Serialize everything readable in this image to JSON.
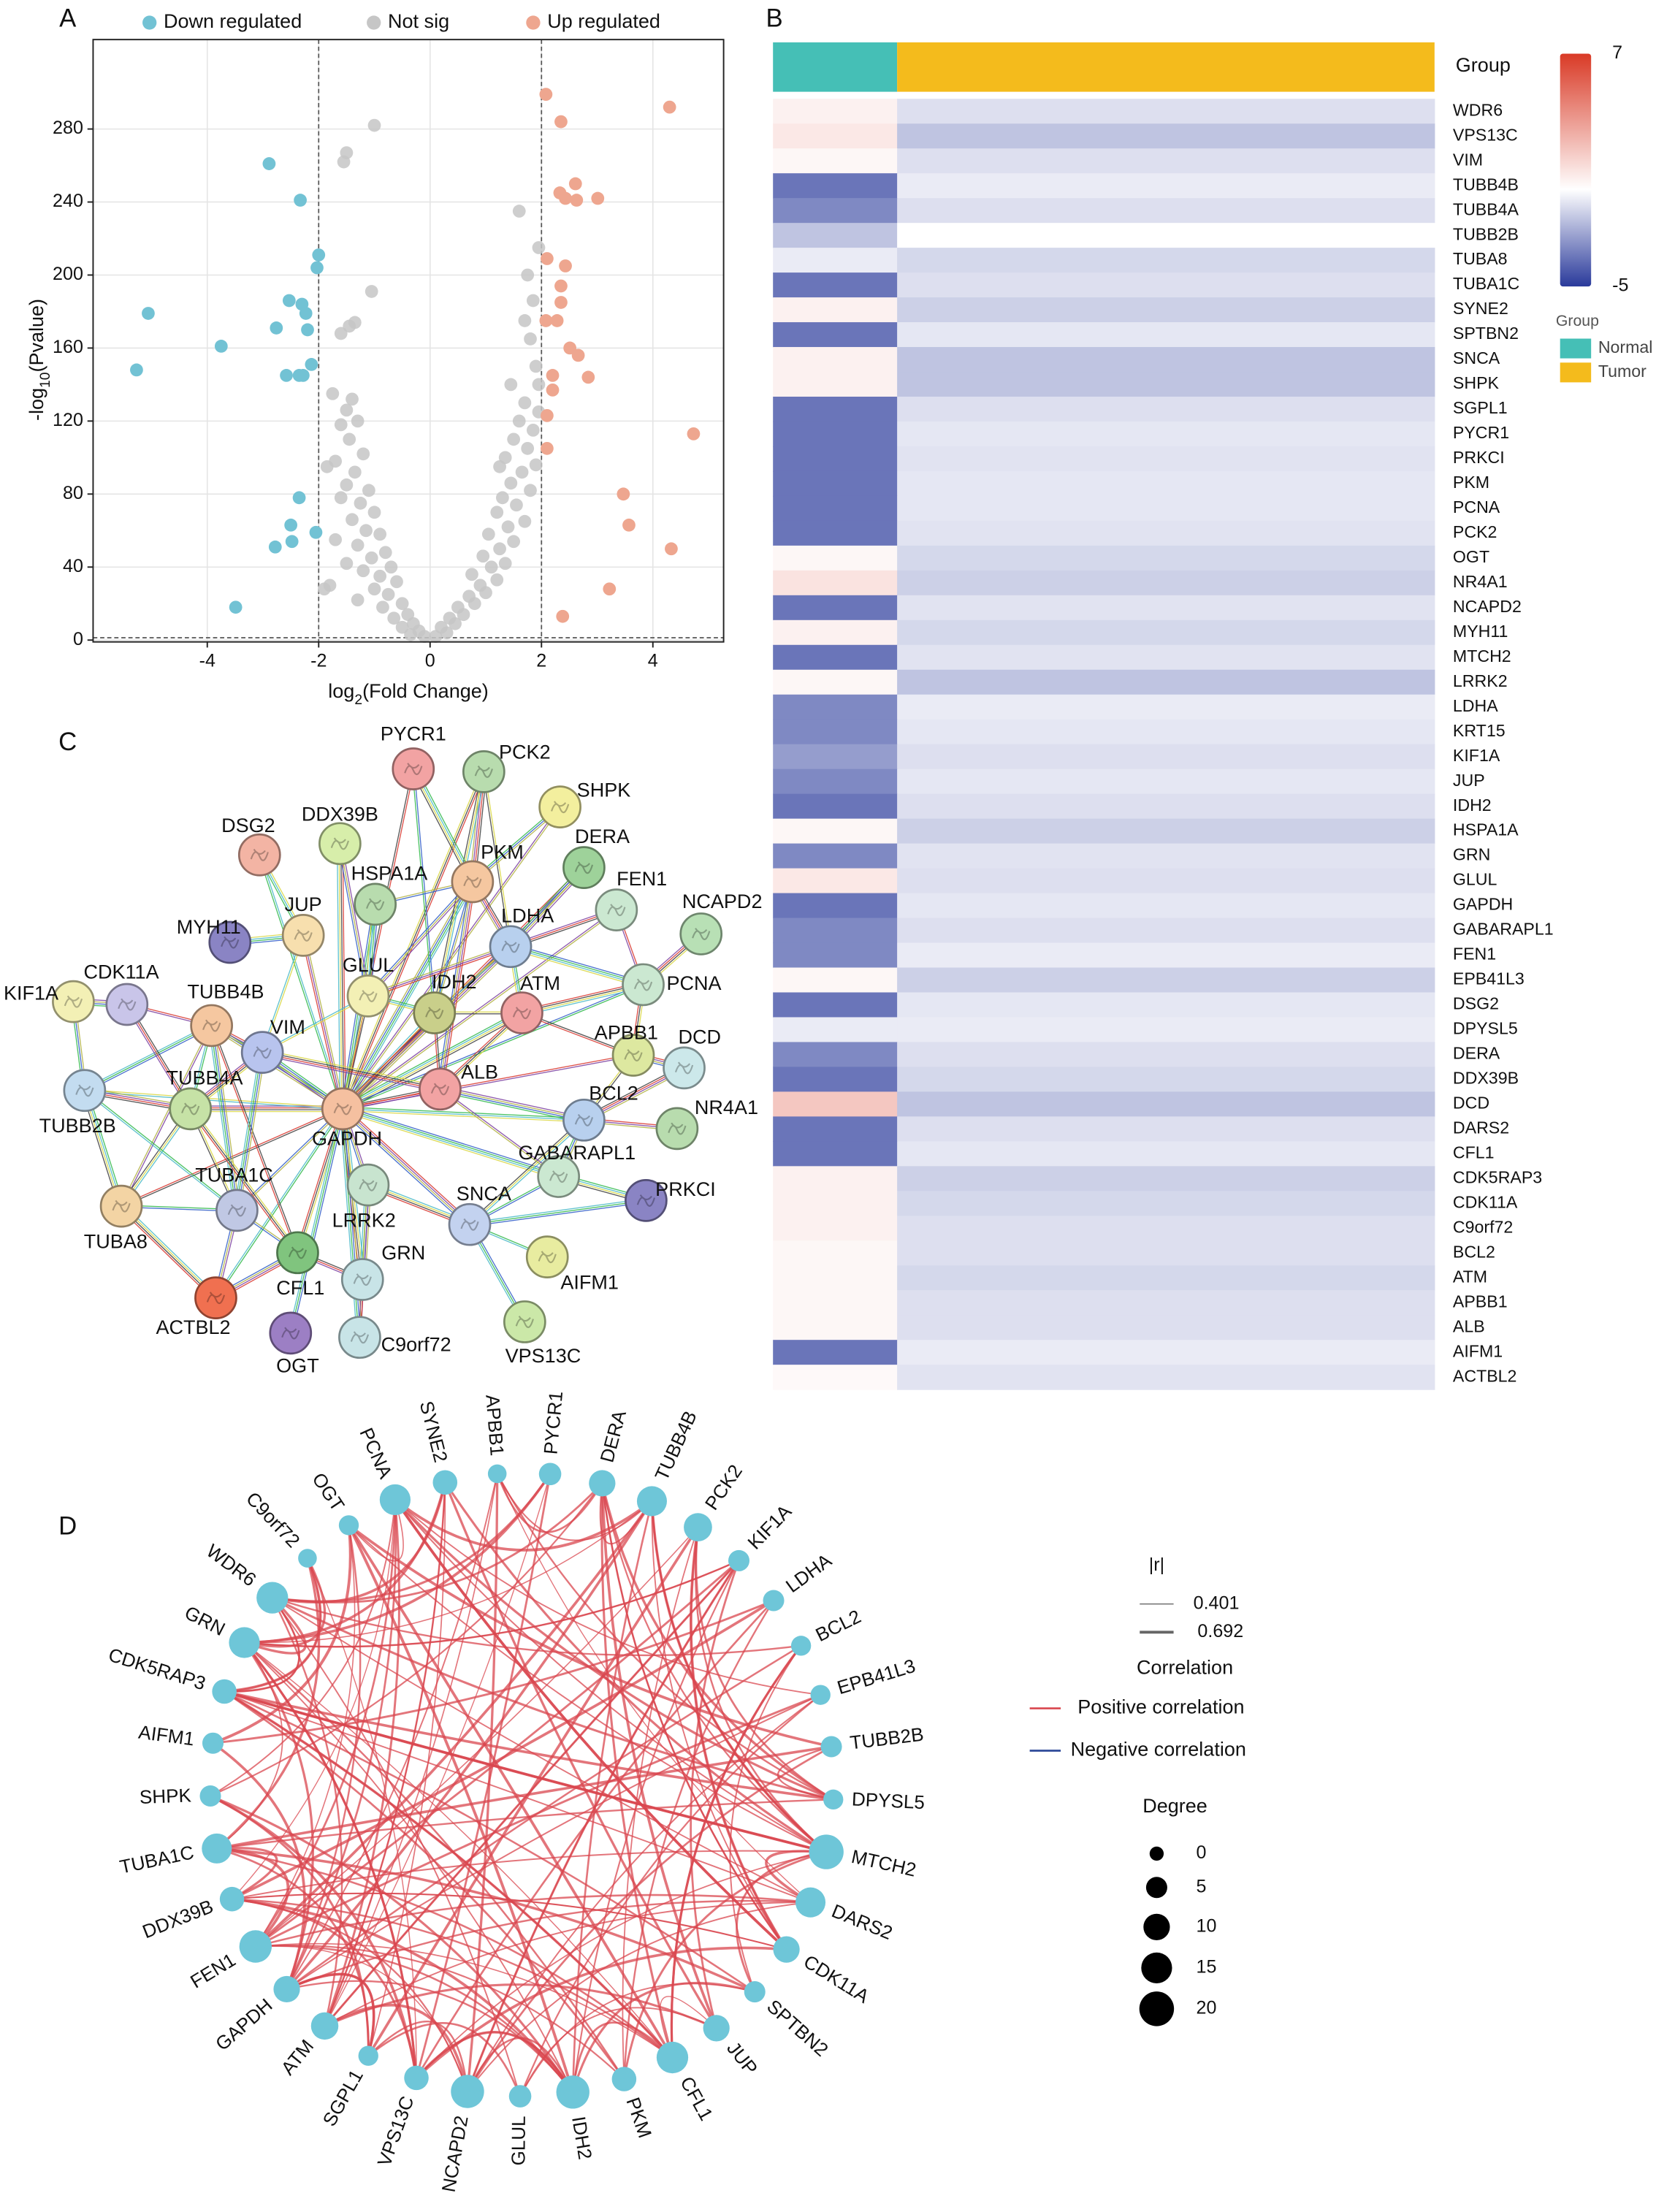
{
  "chart_data": [
    {
      "type": "scatter",
      "panel": "A",
      "xlabel": [
        "log",
        "2",
        "(Fold Change)"
      ],
      "ylabel": [
        "-log",
        "10",
        "(Pvalue)"
      ],
      "xlim": [
        -6.05,
        5.27
      ],
      "ylim": [
        -1,
        329
      ],
      "xticks": [
        -4,
        -2,
        0,
        2,
        4
      ],
      "yticks": [
        0,
        40,
        80,
        120,
        160,
        200,
        240,
        280
      ],
      "grid": true,
      "vlines": [
        -2,
        2
      ],
      "hline": 1.3,
      "series": [
        {
          "name": "Down regulated",
          "color": "#72c2d4",
          "x": [
            -5.27,
            -5.06,
            -3.75,
            -3.49,
            -2.89,
            -2.33,
            -2.0,
            -2.03,
            -2.53,
            -2.3,
            -2.23,
            -2.76,
            -2.2,
            -2.58,
            -2.35,
            -2.28,
            -2.13,
            -2.35,
            -2.5,
            -2.05,
            -2.78,
            -2.48
          ],
          "values": [
            148,
            179,
            161,
            18,
            261,
            241,
            211,
            204,
            186,
            184,
            179,
            171,
            170,
            145,
            145,
            145,
            151,
            78,
            63,
            59,
            51,
            54
          ]
        },
        {
          "name": "Not sig",
          "color": "#c6c6c6",
          "x": [
            -1.0,
            -1.5,
            -1.55,
            -1.05,
            -1.45,
            -1.35,
            -1.6,
            -1.4,
            -1.5,
            -1.3,
            -1.6,
            -1.45,
            -1.2,
            -1.7,
            -1.35,
            -1.5,
            -1.1,
            -1.6,
            -1.25,
            -1.0,
            -1.4,
            -1.15,
            -0.9,
            -1.7,
            -1.3,
            -0.8,
            -1.05,
            -1.5,
            -0.7,
            -1.2,
            -0.9,
            -1.8,
            -0.6,
            -1.0,
            -0.75,
            -1.3,
            -0.5,
            -0.85,
            -0.4,
            -0.65,
            -0.3,
            -0.5,
            -0.2,
            -0.35,
            -0.1,
            -1.9,
            -1.85,
            -1.75,
            0.1,
            0.3,
            0.2,
            0.45,
            0.35,
            0.6,
            0.5,
            0.8,
            0.7,
            1.0,
            0.9,
            1.2,
            0.75,
            1.1,
            1.35,
            0.95,
            1.25,
            1.5,
            1.05,
            1.4,
            1.7,
            1.2,
            1.55,
            1.3,
            1.8,
            1.45,
            1.65,
            1.9,
            1.35,
            1.75,
            1.5,
            1.85,
            1.6,
            1.95,
            1.7,
            1.45,
            1.9,
            1.8,
            1.7,
            1.85,
            1.75,
            1.95,
            1.6,
            1.95,
            1.25
          ],
          "values": [
            282,
            267,
            262,
            191,
            172,
            174,
            168,
            132,
            126,
            120,
            118,
            110,
            102,
            98,
            92,
            85,
            82,
            78,
            75,
            70,
            66,
            60,
            58,
            55,
            52,
            48,
            45,
            42,
            40,
            38,
            35,
            30,
            32,
            28,
            25,
            22,
            20,
            18,
            14,
            12,
            9,
            7,
            5,
            3,
            2,
            28,
            95,
            135,
            2,
            4,
            7,
            9,
            12,
            14,
            18,
            20,
            24,
            26,
            30,
            33,
            36,
            40,
            42,
            46,
            50,
            54,
            58,
            62,
            65,
            70,
            74,
            78,
            82,
            86,
            92,
            96,
            100,
            105,
            110,
            115,
            120,
            125,
            130,
            140,
            150,
            165,
            175,
            186,
            200,
            215,
            235,
            140,
            95
          ]
        },
        {
          "name": "Up regulated",
          "color": "#eea68f",
          "x": [
            2.08,
            2.35,
            4.3,
            2.61,
            2.33,
            2.63,
            3.01,
            2.43,
            2.1,
            2.43,
            2.35,
            2.35,
            2.28,
            2.08,
            2.51,
            2.66,
            2.2,
            2.84,
            2.2,
            2.1,
            2.1,
            4.73,
            3.47,
            3.57,
            4.33,
            3.22,
            2.38
          ],
          "values": [
            299,
            284,
            292,
            250,
            245,
            241,
            242,
            242,
            209,
            205,
            194,
            185,
            175,
            175,
            160,
            156,
            145,
            144,
            137,
            123,
            105,
            113,
            80,
            63,
            50,
            28,
            13
          ]
        }
      ]
    },
    {
      "type": "heatmap",
      "panel": "B",
      "group_label": "Group",
      "groups": [
        {
          "name": "Normal",
          "color": "#45bfb6"
        },
        {
          "name": "Tumor",
          "color": "#f4bb1c"
        }
      ],
      "color_range": [
        -5,
        7
      ],
      "colors": [
        "#2a3a9b",
        "#ffffff",
        "#d93a26"
      ],
      "color_ticks": [
        7,
        -5
      ],
      "rows": [
        "WDR6",
        "VPS13C",
        "VIM",
        "TUBB4B",
        "TUBB4A",
        "TUBB2B",
        "TUBA8",
        "TUBA1C",
        "SYNE2",
        "SPTBN2",
        "SNCA",
        "SHPK",
        "SGPL1",
        "PYCR1",
        "PRKCI",
        "PKM",
        "PCNA",
        "PCK2",
        "OGT",
        "NR4A1",
        "NCAPD2",
        "MYH11",
        "MTCH2",
        "LRRK2",
        "LDHA",
        "KRT15",
        "KIF1A",
        "JUP",
        "IDH2",
        "HSPA1A",
        "GRN",
        "GLUL",
        "GAPDH",
        "GABARAPL1",
        "FEN1",
        "EPB41L3",
        "DSG2",
        "DPYSL5",
        "DERA",
        "DDX39B",
        "DCD",
        "DARS2",
        "CFL1",
        "CDK5RAP3",
        "CDK11A",
        "C9orf72",
        "BCL2",
        "ATM",
        "APBB1",
        "ALB",
        "AIFM1",
        "ACTBL2"
      ],
      "values": [
        [
          0.5,
          -0.8
        ],
        [
          0.8,
          -1.5
        ],
        [
          0.3,
          -0.8
        ],
        [
          -3.5,
          -0.5
        ],
        [
          -3,
          -0.8
        ],
        [
          -1.5,
          0
        ],
        [
          -0.5,
          -1
        ],
        [
          -3.5,
          -0.8
        ],
        [
          0.5,
          -1.2
        ],
        [
          -3.5,
          -0.6
        ],
        [
          0.5,
          -1.5
        ],
        [
          0.5,
          -1.5
        ],
        [
          -3.5,
          -0.8
        ],
        [
          -3.5,
          -0.6
        ],
        [
          -3.5,
          -0.7
        ],
        [
          -3.5,
          -0.6
        ],
        [
          -3.5,
          -0.6
        ],
        [
          -3.5,
          -0.7
        ],
        [
          0.3,
          -1.0
        ],
        [
          1.0,
          -1.2
        ],
        [
          -3.5,
          -0.7
        ],
        [
          0.5,
          -1.0
        ],
        [
          -3.5,
          -0.7
        ],
        [
          0.3,
          -1.5
        ],
        [
          -3,
          -0.5
        ],
        [
          -3,
          -0.6
        ],
        [
          -2.5,
          -0.8
        ],
        [
          -3,
          -0.6
        ],
        [
          -3.5,
          -0.8
        ],
        [
          0.3,
          -1.2
        ],
        [
          -3,
          -0.7
        ],
        [
          0.8,
          -0.8
        ],
        [
          -3.5,
          -0.6
        ],
        [
          -3,
          -0.8
        ],
        [
          -3,
          -0.5
        ],
        [
          0.3,
          -1.2
        ],
        [
          -3.5,
          -0.6
        ],
        [
          -0.5,
          -0.5
        ],
        [
          -3,
          -0.8
        ],
        [
          -3.5,
          -1.0
        ],
        [
          2,
          -1.5
        ],
        [
          -3.5,
          -0.8
        ],
        [
          -3.5,
          -0.6
        ],
        [
          0.5,
          -1.2
        ],
        [
          0.5,
          -1.0
        ],
        [
          0.5,
          -0.8
        ],
        [
          0.3,
          -0.8
        ],
        [
          0.3,
          -1.0
        ],
        [
          0.3,
          -0.8
        ],
        [
          0.3,
          -0.8
        ],
        [
          -3.5,
          -0.5
        ],
        [
          0.2,
          -0.7
        ]
      ]
    },
    {
      "type": "network",
      "panel": "C",
      "nodes": [
        {
          "label": "PYCR1",
          "color": "#f2a3a3"
        },
        {
          "label": "PCK2",
          "color": "#b8dcae"
        },
        {
          "label": "SHPK",
          "color": "#f3ef9e"
        },
        {
          "label": "DDX39B",
          "color": "#d7eeaa"
        },
        {
          "label": "DSG2",
          "color": "#f3b4a4"
        },
        {
          "label": "DERA",
          "color": "#9ed29a"
        },
        {
          "label": "HSPA1A",
          "color": "#b8dcae"
        },
        {
          "label": "PKM",
          "color": "#f5c7a0"
        },
        {
          "label": "FEN1",
          "color": "#cbe8d1"
        },
        {
          "label": "NCAPD2",
          "color": "#b8e0b5"
        },
        {
          "label": "MYH11",
          "color": "#8a84c4"
        },
        {
          "label": "JUP",
          "color": "#f7dfae"
        },
        {
          "label": "LDHA",
          "color": "#b8d0ee"
        },
        {
          "label": "GLUL",
          "color": "#f3f0b5"
        },
        {
          "label": "IDH2",
          "color": "#c9cf8a"
        },
        {
          "label": "ATM",
          "color": "#f2a3a3"
        },
        {
          "label": "PCNA",
          "color": "#cbe8d1"
        },
        {
          "label": "CDK11A",
          "color": "#c9c5e9"
        },
        {
          "label": "KIF1A",
          "color": "#f3f0b5"
        },
        {
          "label": "TUBB4B",
          "color": "#f5c7a0"
        },
        {
          "label": "VIM",
          "color": "#b8c4ee"
        },
        {
          "label": "APBB1",
          "color": "#dde8a0"
        },
        {
          "label": "DCD",
          "color": "#cce8ea"
        },
        {
          "label": "ALB",
          "color": "#f2a3a3"
        },
        {
          "label": "GAPDH",
          "color": "#f5c0a0"
        },
        {
          "label": "TUBB4A",
          "color": "#c6e2a6"
        },
        {
          "label": "TUBB2B",
          "color": "#c3dcf0"
        },
        {
          "label": "BCL2",
          "color": "#b8d0ee"
        },
        {
          "label": "NR4A1",
          "color": "#b8dcae"
        },
        {
          "label": "GABARAPL1",
          "color": "#cbe8d1"
        },
        {
          "label": "TUBA1C",
          "color": "#c0c8e4"
        },
        {
          "label": "LRRK2",
          "color": "#c8e4cf"
        },
        {
          "label": "SNCA",
          "color": "#c3d2ef"
        },
        {
          "label": "PRKCI",
          "color": "#8a84c4"
        },
        {
          "label": "TUBA8",
          "color": "#f3d4a4"
        },
        {
          "label": "CFL1",
          "color": "#80c47e"
        },
        {
          "label": "GRN",
          "color": "#c8e4e7"
        },
        {
          "label": "AIFM1",
          "color": "#e8eca0"
        },
        {
          "label": "ACTBL2",
          "color": "#f07050"
        },
        {
          "label": "OGT",
          "color": "#9c7fc4"
        },
        {
          "label": "C9orf72",
          "color": "#c8e4e7"
        },
        {
          "label": "VPS13C",
          "color": "#cbe8a8"
        }
      ]
    },
    {
      "type": "circular-network",
      "panel": "D",
      "node_color": "#6ec6d8",
      "nodes": [
        "PCNA",
        "SYNE2",
        "APBB1",
        "PYCR1",
        "DERA",
        "TUBB4B",
        "PCK2",
        "KIF1A",
        "LDHA",
        "BCL2",
        "EPB41L3",
        "TUBB2B",
        "DPYSL5",
        "MTCH2",
        "DARS2",
        "CDK11A",
        "SPTBN2",
        "JUP",
        "CFL1",
        "PKM",
        "IDH2",
        "GLUL",
        "NCAPD2",
        "VPS13C",
        "SGPL1",
        "ATM",
        "GAPDH",
        "FEN1",
        "DDX39B",
        "TUBA1C",
        "SHPK",
        "AIFM1",
        "CDK5RAP3",
        "GRN",
        "WDR6",
        "C9orf72",
        "OGT"
      ],
      "degree": [
        15,
        8,
        3,
        6,
        10,
        14,
        12,
        5,
        5,
        4,
        4,
        5,
        4,
        20,
        14,
        10,
        5,
        10,
        16,
        8,
        18,
        6,
        18,
        8,
        4,
        11,
        10,
        17,
        8,
        14,
        5,
        5,
        8,
        15,
        16,
        3,
        4
      ],
      "width_title": "|r|",
      "width_values": [
        0.401,
        0.692
      ],
      "color_title": "Correlation",
      "correlation": [
        {
          "name": "Positive correlation",
          "color": "#d9474f"
        },
        {
          "name": "Negative correlation",
          "color": "#2e4a9a"
        }
      ],
      "size_title": "Degree",
      "size_values": [
        0,
        5,
        10,
        15,
        20
      ]
    }
  ]
}
